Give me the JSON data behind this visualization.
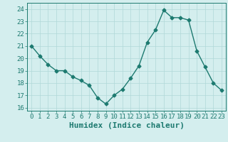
{
  "x": [
    0,
    1,
    2,
    3,
    4,
    5,
    6,
    7,
    8,
    9,
    10,
    11,
    12,
    13,
    14,
    15,
    16,
    17,
    18,
    19,
    20,
    21,
    22,
    23
  ],
  "y": [
    21.0,
    20.2,
    19.5,
    19.0,
    19.0,
    18.5,
    18.2,
    17.8,
    16.8,
    16.3,
    17.0,
    17.5,
    18.4,
    19.4,
    21.3,
    22.3,
    23.9,
    23.3,
    23.3,
    23.1,
    20.6,
    19.3,
    18.0,
    17.4
  ],
  "xlim": [
    -0.5,
    23.5
  ],
  "ylim": [
    15.75,
    24.5
  ],
  "yticks": [
    16,
    17,
    18,
    19,
    20,
    21,
    22,
    23,
    24
  ],
  "xticks": [
    0,
    1,
    2,
    3,
    4,
    5,
    6,
    7,
    8,
    9,
    10,
    11,
    12,
    13,
    14,
    15,
    16,
    17,
    18,
    19,
    20,
    21,
    22,
    23
  ],
  "xlabel": "Humidex (Indice chaleur)",
  "line_color": "#1d7a70",
  "bg_color": "#d4eeee",
  "grid_color": "#b0d8d8",
  "marker": "D",
  "marker_size": 2.5,
  "line_width": 1.0,
  "tick_color": "#1d7a70",
  "xlabel_color": "#1d7a70",
  "xlabel_fontsize": 8,
  "tick_fontsize": 6.5
}
